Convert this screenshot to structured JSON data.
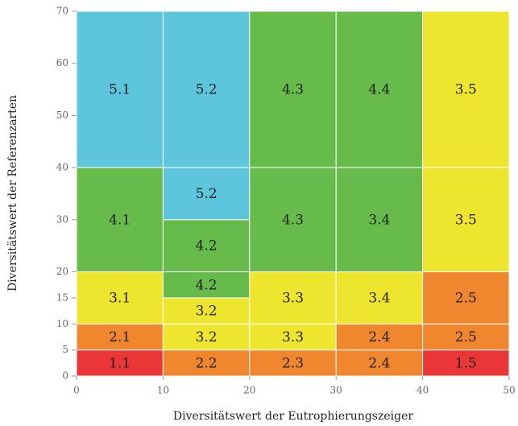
{
  "chart_data": {
    "type": "grid",
    "xlabel": "Diversitätswert der Eutrophierungszeiger",
    "ylabel": "Diversitätswert der Referenzarten",
    "xlim": [
      0,
      50
    ],
    "xticks": [
      0,
      10,
      20,
      30,
      40,
      50
    ],
    "ylim": [
      0,
      70
    ],
    "yticks": [
      0,
      5,
      10,
      15,
      20,
      30,
      40,
      50,
      60,
      70
    ],
    "cells": [
      {
        "label": "5.1",
        "x": [
          0,
          10
        ],
        "y": [
          40,
          70
        ],
        "color": "#5ec6dc"
      },
      {
        "label": "4.1",
        "x": [
          0,
          10
        ],
        "y": [
          20,
          40
        ],
        "color": "#66bb4a"
      },
      {
        "label": "3.1",
        "x": [
          0,
          10
        ],
        "y": [
          10,
          20
        ],
        "color": "#eee52e"
      },
      {
        "label": "2.1",
        "x": [
          0,
          10
        ],
        "y": [
          5,
          10
        ],
        "color": "#f0862e"
      },
      {
        "label": "1.1",
        "x": [
          0,
          10
        ],
        "y": [
          0,
          5
        ],
        "color": "#ea3636"
      },
      {
        "label": "5.2",
        "x": [
          10,
          20
        ],
        "y": [
          40,
          70
        ],
        "color": "#5ec6dc"
      },
      {
        "label": "5.2",
        "x": [
          10,
          20
        ],
        "y": [
          30,
          40
        ],
        "color": "#5ec6dc"
      },
      {
        "label": "4.2",
        "x": [
          10,
          20
        ],
        "y": [
          20,
          30
        ],
        "color": "#66bb4a"
      },
      {
        "label": "4.2",
        "x": [
          10,
          20
        ],
        "y": [
          15,
          20
        ],
        "color": "#66bb4a"
      },
      {
        "label": "3.2",
        "x": [
          10,
          20
        ],
        "y": [
          10,
          15
        ],
        "color": "#eee52e"
      },
      {
        "label": "3.2",
        "x": [
          10,
          20
        ],
        "y": [
          5,
          10
        ],
        "color": "#eee52e"
      },
      {
        "label": "2.2",
        "x": [
          10,
          20
        ],
        "y": [
          0,
          5
        ],
        "color": "#f0862e"
      },
      {
        "label": "4.3",
        "x": [
          20,
          30
        ],
        "y": [
          40,
          70
        ],
        "color": "#66bb4a"
      },
      {
        "label": "4.3",
        "x": [
          20,
          30
        ],
        "y": [
          20,
          40
        ],
        "color": "#66bb4a"
      },
      {
        "label": "3.3",
        "x": [
          20,
          30
        ],
        "y": [
          10,
          20
        ],
        "color": "#eee52e"
      },
      {
        "label": "3.3",
        "x": [
          20,
          30
        ],
        "y": [
          5,
          10
        ],
        "color": "#eee52e"
      },
      {
        "label": "2.3",
        "x": [
          20,
          30
        ],
        "y": [
          0,
          5
        ],
        "color": "#f0862e"
      },
      {
        "label": "4.4",
        "x": [
          30,
          40
        ],
        "y": [
          40,
          70
        ],
        "color": "#66bb4a"
      },
      {
        "label": "3.4",
        "x": [
          30,
          40
        ],
        "y": [
          20,
          40
        ],
        "color": "#66bb4a"
      },
      {
        "label": "3.4",
        "x": [
          30,
          40
        ],
        "y": [
          10,
          20
        ],
        "color": "#eee52e"
      },
      {
        "label": "2.4",
        "x": [
          30,
          40
        ],
        "y": [
          5,
          10
        ],
        "color": "#f0862e"
      },
      {
        "label": "2.4",
        "x": [
          30,
          40
        ],
        "y": [
          0,
          5
        ],
        "color": "#f0862e"
      },
      {
        "label": "3.5",
        "x": [
          40,
          50
        ],
        "y": [
          40,
          70
        ],
        "color": "#eee52e"
      },
      {
        "label": "3.5",
        "x": [
          40,
          50
        ],
        "y": [
          20,
          40
        ],
        "color": "#eee52e"
      },
      {
        "label": "2.5",
        "x": [
          40,
          50
        ],
        "y": [
          10,
          20
        ],
        "color": "#f0862e"
      },
      {
        "label": "2.5",
        "x": [
          40,
          50
        ],
        "y": [
          5,
          10
        ],
        "color": "#f0862e"
      },
      {
        "label": "1.5",
        "x": [
          40,
          50
        ],
        "y": [
          0,
          5
        ],
        "color": "#ea3636"
      }
    ]
  }
}
